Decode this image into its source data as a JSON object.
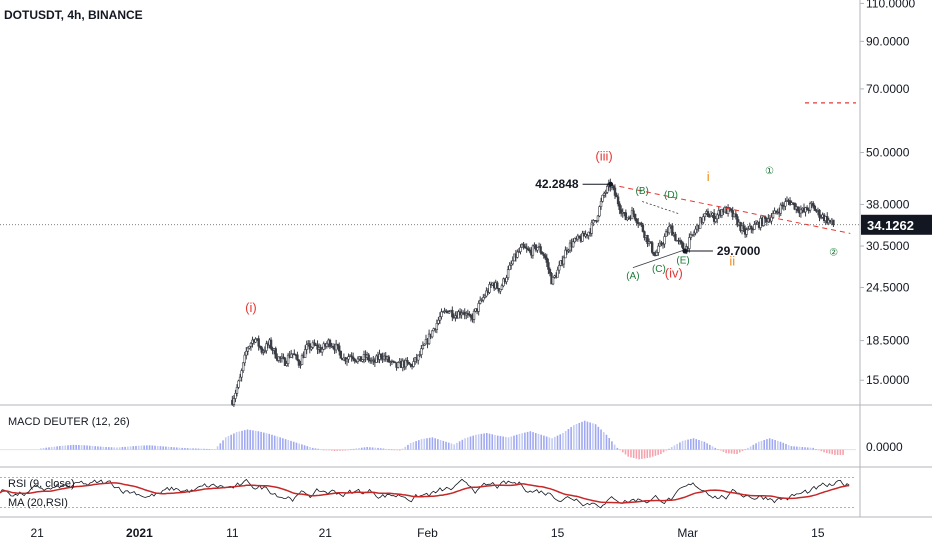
{
  "chart_data": {
    "type": "candlestick",
    "title": "DOTUSDT, 4h, BINANCE",
    "price_axis": {
      "scale": "log",
      "ticks": [
        "110.0000",
        "90.0000",
        "70.0000",
        "50.0000",
        "38.0000",
        "30.5000",
        "24.5000",
        "18.5000",
        "15.0000"
      ],
      "tick_values": [
        110,
        90,
        70,
        50,
        38,
        30.5,
        24.5,
        18.5,
        15
      ],
      "range": [
        13.3,
        112
      ]
    },
    "current_price": {
      "label": "34.1262",
      "value": 34.1262
    },
    "target_level": 65,
    "time_axis": {
      "labels": [
        "21",
        "2021",
        "11",
        "21",
        "Feb",
        "15",
        "Mar",
        "15"
      ],
      "label_days": [
        -11,
        0,
        10,
        20,
        31,
        45,
        59,
        73
      ],
      "start_day": -15,
      "end_day": 77
    },
    "price_path": [
      [
        10.0,
        13.5
      ],
      [
        10.8,
        15.0
      ],
      [
        11.6,
        17.8
      ],
      [
        12.4,
        18.8
      ],
      [
        13.2,
        17.5
      ],
      [
        14.0,
        18.2
      ],
      [
        14.8,
        17.0
      ],
      [
        15.6,
        16.5
      ],
      [
        16.4,
        17.4
      ],
      [
        17.2,
        16.4
      ],
      [
        18.0,
        17.8
      ],
      [
        18.8,
        18.0
      ],
      [
        19.6,
        17.6
      ],
      [
        20.4,
        18.4
      ],
      [
        21.2,
        17.8
      ],
      [
        22.0,
        16.8
      ],
      [
        22.8,
        17.2
      ],
      [
        23.6,
        16.6
      ],
      [
        24.4,
        17.0
      ],
      [
        25.2,
        16.4
      ],
      [
        26.0,
        17.2
      ],
      [
        26.8,
        16.6
      ],
      [
        27.6,
        16.1
      ],
      [
        28.4,
        16.4
      ],
      [
        29.2,
        16.2
      ],
      [
        30.0,
        16.9
      ],
      [
        30.8,
        18.2
      ],
      [
        31.6,
        19.6
      ],
      [
        32.4,
        21.0
      ],
      [
        33.2,
        21.8
      ],
      [
        34.0,
        21.2
      ],
      [
        34.8,
        21.7
      ],
      [
        35.6,
        20.6
      ],
      [
        36.4,
        22.0
      ],
      [
        37.2,
        23.6
      ],
      [
        38.0,
        25.0
      ],
      [
        38.8,
        24.3
      ],
      [
        39.6,
        26.4
      ],
      [
        40.4,
        28.8
      ],
      [
        41.2,
        30.2
      ],
      [
        42.0,
        29.5
      ],
      [
        42.8,
        30.4
      ],
      [
        43.6,
        29.0
      ],
      [
        44.4,
        25.2
      ],
      [
        45.2,
        27.2
      ],
      [
        46.0,
        30.2
      ],
      [
        46.8,
        31.2
      ],
      [
        47.6,
        31.8
      ],
      [
        48.4,
        33.0
      ],
      [
        49.2,
        35.6
      ],
      [
        50.0,
        40.2
      ],
      [
        50.7,
        42.2
      ],
      [
        51.5,
        38.5
      ],
      [
        52.3,
        35.2
      ],
      [
        53.1,
        36.4
      ],
      [
        53.9,
        34.2
      ],
      [
        54.7,
        31.4
      ],
      [
        55.5,
        29.0
      ],
      [
        56.3,
        31.2
      ],
      [
        57.1,
        33.8
      ],
      [
        57.9,
        31.2
      ],
      [
        58.7,
        29.9
      ],
      [
        59.5,
        32.2
      ],
      [
        60.3,
        34.6
      ],
      [
        61.1,
        36.2
      ],
      [
        61.9,
        35.4
      ],
      [
        62.7,
        37.0
      ],
      [
        63.5,
        36.6
      ],
      [
        64.3,
        34.8
      ],
      [
        65.1,
        32.6
      ],
      [
        65.9,
        33.6
      ],
      [
        66.7,
        34.4
      ],
      [
        67.5,
        35.2
      ],
      [
        68.3,
        36.0
      ],
      [
        69.1,
        37.6
      ],
      [
        69.9,
        38.8
      ],
      [
        70.7,
        37.4
      ],
      [
        71.5,
        36.5
      ],
      [
        72.3,
        37.8
      ],
      [
        73.1,
        36.2
      ],
      [
        73.9,
        35.2
      ],
      [
        74.7,
        34.1
      ]
    ],
    "annotations": {
      "waves_red": [
        {
          "label": "(i)",
          "day": 12.0,
          "price": 21.5
        },
        {
          "label": "(iii)",
          "day": 50.0,
          "price": 48.0
        },
        {
          "label": "(iv)",
          "day": 57.5,
          "price": 25.8
        }
      ],
      "waves_green": [
        {
          "label": "(A)",
          "day": 53.1,
          "price": 25.6
        },
        {
          "label": "(B)",
          "day": 54.1,
          "price": 40.2
        },
        {
          "label": "(C)",
          "day": 55.9,
          "price": 26.6
        },
        {
          "label": "(D)",
          "day": 57.2,
          "price": 39.3
        },
        {
          "label": "(E)",
          "day": 58.5,
          "price": 27.8
        },
        {
          "label": "①",
          "day": 67.8,
          "price": 44.6
        },
        {
          "label": "②",
          "day": 74.7,
          "price": 29.0
        }
      ],
      "waves_orange": [
        {
          "label": "i",
          "day": 61.2,
          "price": 43.0
        },
        {
          "label": "ii",
          "day": 63.8,
          "price": 27.5
        }
      ],
      "price_notes": [
        {
          "label": "42.2848",
          "day": 50.7,
          "value": 42.2848,
          "side": "left"
        },
        {
          "label": "29.7000",
          "day": 58.7,
          "value": 29.7,
          "side": "right"
        }
      ]
    },
    "macd": {
      "label": "MACD DEUTER (12, 26)",
      "ticks": [
        "0.0000"
      ],
      "values": [
        0.3,
        0.6,
        0.9,
        1.1,
        1.0,
        0.8,
        0.6,
        0.5,
        0.7,
        0.9,
        1.0,
        0.8,
        0.6,
        0.4,
        0.3,
        0.2,
        0.1,
        2.8,
        4.0,
        4.6,
        4.2,
        3.6,
        2.8,
        2.0,
        1.2,
        0.4,
        0.0,
        -0.3,
        -0.2,
        0.3,
        0.6,
        0.4,
        0.1,
        -0.2,
        1.5,
        2.4,
        2.8,
        2.0,
        1.2,
        2.6,
        3.4,
        3.8,
        3.2,
        2.8,
        3.6,
        4.2,
        3.4,
        2.6,
        3.8,
        5.6,
        6.6,
        5.8,
        3.4,
        0.4,
        -1.6,
        -2.2,
        -1.8,
        -1.0,
        0.6,
        2.0,
        2.6,
        1.8,
        0.4,
        -0.8,
        -1.0,
        0.4,
        1.8,
        2.6,
        1.8,
        0.8,
        0.6,
        0.4,
        -0.6,
        -1.2
      ],
      "range": [
        -3.5,
        9.5
      ]
    },
    "rsi": {
      "labels": [
        "RSI (9, close)",
        "MA (20,RSI)"
      ],
      "range": [
        20,
        80
      ]
    }
  }
}
